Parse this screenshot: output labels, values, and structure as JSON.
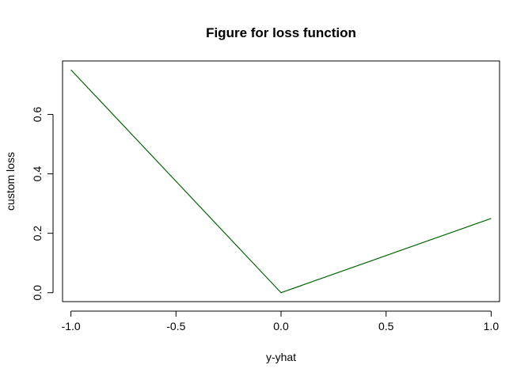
{
  "chart_data": {
    "type": "line",
    "title": "Figure for loss function",
    "xlabel": "y-yhat",
    "ylabel": "custom loss",
    "xlim": [
      -1.04,
      1.04
    ],
    "ylim": [
      -0.03,
      0.78
    ],
    "x_ticks": [
      -1.0,
      -0.5,
      0.0,
      0.5,
      1.0
    ],
    "x_tick_labels": [
      "-1.0",
      "-0.5",
      "0.0",
      "0.5",
      "1.0"
    ],
    "y_ticks": [
      0.0,
      0.2,
      0.4,
      0.6
    ],
    "y_tick_labels": [
      "0.0",
      "0.2",
      "0.4",
      "0.6"
    ],
    "grid": false,
    "series": [
      {
        "color": "#006400",
        "x": [
          -1.0,
          -0.5,
          0.0,
          0.5,
          1.0
        ],
        "y": [
          0.75,
          0.375,
          0.0,
          0.125,
          0.25
        ]
      }
    ]
  }
}
